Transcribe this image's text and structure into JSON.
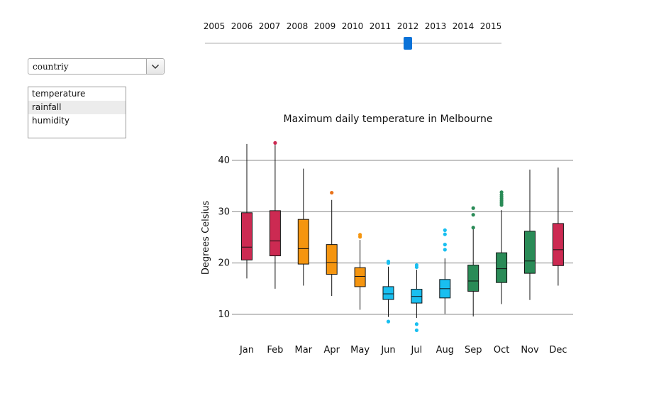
{
  "year_slider": {
    "years": [
      "2005",
      "2006",
      "2007",
      "2008",
      "2009",
      "2010",
      "2011",
      "2012",
      "2013",
      "2014",
      "2015"
    ],
    "selected_year": "2012"
  },
  "country_select": {
    "value": "countriy"
  },
  "metric_list": {
    "items": [
      {
        "label": "temperature",
        "selected": false
      },
      {
        "label": "rainfall",
        "selected": true
      },
      {
        "label": "humidity",
        "selected": false
      }
    ]
  },
  "chart_data": {
    "type": "boxplot",
    "title": "Maximum daily temperature in Melbourne",
    "ylabel": "Degrees Celsius",
    "xlabel": "",
    "ylim": [
      5,
      45
    ],
    "yticks": [
      10,
      20,
      30,
      40
    ],
    "grid": true,
    "categories": [
      "Jan",
      "Feb",
      "Mar",
      "Apr",
      "May",
      "Jun",
      "Jul",
      "Aug",
      "Sep",
      "Oct",
      "Nov",
      "Dec"
    ],
    "colors": [
      "#cc2a52",
      "#cc2a52",
      "#f5950f",
      "#f5950f",
      "#f5950f",
      "#19bff0",
      "#19bff0",
      "#19bff0",
      "#2a8b57",
      "#2a8b57",
      "#2a8b57",
      "#cc2a52"
    ],
    "outlier_colors": [
      "#cc2a52",
      "#cc2a52",
      "#f5950f",
      "#e8721a",
      "#f5950f",
      "#19bff0",
      "#19bff0",
      "#19bff0",
      "#2a8b57",
      "#2a8b57",
      "#2a8b57",
      "#cc2a52"
    ],
    "boxes": [
      {
        "min": 17.0,
        "q1": 20.6,
        "median": 23.1,
        "q3": 29.8,
        "max": 43.2,
        "outliers": []
      },
      {
        "min": 15.0,
        "q1": 21.4,
        "median": 24.3,
        "q3": 30.2,
        "max": 43.0,
        "outliers": [
          43.4
        ]
      },
      {
        "min": 15.6,
        "q1": 19.8,
        "median": 22.8,
        "q3": 28.5,
        "max": 38.4,
        "outliers": []
      },
      {
        "min": 13.6,
        "q1": 17.8,
        "median": 20.1,
        "q3": 23.6,
        "max": 32.3,
        "outliers": [
          33.7
        ]
      },
      {
        "min": 10.9,
        "q1": 15.4,
        "median": 17.4,
        "q3": 19.1,
        "max": 24.5,
        "outliers": [
          25.1,
          25.5
        ]
      },
      {
        "min": 9.5,
        "q1": 12.9,
        "median": 14.0,
        "q3": 15.4,
        "max": 19.3,
        "outliers": [
          20.0,
          20.3,
          8.6
        ]
      },
      {
        "min": 9.3,
        "q1": 12.2,
        "median": 13.5,
        "q3": 14.9,
        "max": 18.7,
        "outliers": [
          19.2,
          19.6,
          8.1,
          6.9
        ]
      },
      {
        "min": 10.1,
        "q1": 13.2,
        "median": 15.0,
        "q3": 16.8,
        "max": 20.9,
        "outliers": [
          22.6,
          23.6,
          25.6,
          26.4
        ]
      },
      {
        "min": 9.6,
        "q1": 14.5,
        "median": 16.5,
        "q3": 19.6,
        "max": 26.8,
        "outliers": [
          29.4,
          30.7,
          26.9
        ]
      },
      {
        "min": 12.0,
        "q1": 16.2,
        "median": 18.9,
        "q3": 22.0,
        "max": 30.3,
        "outliers": [
          31.3,
          31.7,
          32.1,
          32.5,
          32.9,
          33.3,
          33.8
        ]
      },
      {
        "min": 12.8,
        "q1": 18.0,
        "median": 20.4,
        "q3": 26.2,
        "max": 38.2,
        "outliers": []
      },
      {
        "min": 15.6,
        "q1": 19.5,
        "median": 22.6,
        "q3": 27.7,
        "max": 38.6,
        "outliers": []
      }
    ]
  }
}
